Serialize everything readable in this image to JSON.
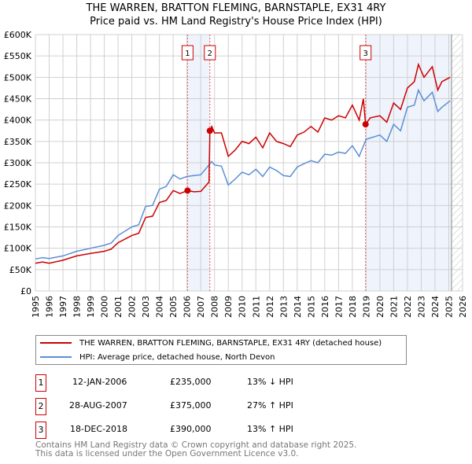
{
  "chart_data": {
    "type": "line",
    "title": "THE WARREN, BRATTON FLEMING, BARNSTAPLE, EX31 4RY",
    "subtitle": "Price paid vs. HM Land Registry's House Price Index (HPI)",
    "xlim": [
      1995,
      2026
    ],
    "ylim": [
      0,
      600000
    ],
    "x_ticks": [
      "1995",
      "1996",
      "1997",
      "1998",
      "1999",
      "2000",
      "2001",
      "2002",
      "2003",
      "2004",
      "2005",
      "2006",
      "2007",
      "2008",
      "2009",
      "2010",
      "2011",
      "2012",
      "2013",
      "2014",
      "2015",
      "2016",
      "2017",
      "2018",
      "2019",
      "2020",
      "2021",
      "2022",
      "2023",
      "2024",
      "2025",
      "2026"
    ],
    "y_ticks": [
      "£0",
      "£50K",
      "£100K",
      "£150K",
      "£200K",
      "£250K",
      "£300K",
      "£350K",
      "£400K",
      "£450K",
      "£500K",
      "£550K",
      "£600K"
    ],
    "grid": true,
    "series": [
      {
        "name": "THE WARREN, BRATTON FLEMING, BARNSTAPLE, EX31 4RY (detached house)",
        "color": "#cc0000",
        "x": [
          1995,
          1995.5,
          1996,
          1997,
          1998,
          1999,
          2000,
          2000.5,
          2001,
          2002,
          2002.5,
          2003,
          2003.5,
          2004,
          2004.5,
          2005,
          2005.5,
          2006.04,
          2006.5,
          2007,
          2007.6,
          2007.66,
          2007.8,
          2008,
          2008.5,
          2009,
          2009.5,
          2010,
          2010.5,
          2011,
          2011.5,
          2012,
          2012.5,
          2013,
          2013.5,
          2014,
          2014.5,
          2015,
          2015.5,
          2016,
          2016.5,
          2017,
          2017.5,
          2018,
          2018.5,
          2018.8,
          2018.96,
          2019.3,
          2020,
          2020.5,
          2021,
          2021.5,
          2022,
          2022.5,
          2022.8,
          2023.2,
          2023.8,
          2024.2,
          2024.5,
          2025.1
        ],
        "y": [
          65000,
          68000,
          65000,
          72000,
          82000,
          88000,
          93000,
          98000,
          113000,
          130000,
          135000,
          172000,
          175000,
          207000,
          212000,
          235000,
          228000,
          235000,
          232000,
          233000,
          255000,
          375000,
          385000,
          370000,
          370000,
          315000,
          330000,
          350000,
          345000,
          360000,
          335000,
          370000,
          350000,
          345000,
          338000,
          365000,
          372000,
          385000,
          372000,
          405000,
          400000,
          410000,
          405000,
          435000,
          400000,
          450000,
          390000,
          405000,
          410000,
          395000,
          440000,
          425000,
          475000,
          490000,
          530000,
          500000,
          525000,
          470000,
          490000,
          500000
        ]
      },
      {
        "name": "HPI: Average price, detached house, North Devon",
        "color": "#5b8fd6",
        "x": [
          1995,
          1995.5,
          1996,
          1997,
          1998,
          1999,
          2000,
          2000.5,
          2001,
          2002,
          2002.5,
          2003,
          2003.5,
          2004,
          2004.5,
          2005,
          2005.5,
          2006,
          2006.5,
          2007,
          2007.6,
          2007.8,
          2008,
          2008.5,
          2009,
          2009.5,
          2010,
          2010.5,
          2011,
          2011.5,
          2012,
          2012.5,
          2013,
          2013.5,
          2014,
          2014.5,
          2015,
          2015.5,
          2016,
          2016.5,
          2017,
          2017.5,
          2018,
          2018.5,
          2019,
          2020,
          2020.5,
          2021,
          2021.5,
          2022,
          2022.5,
          2022.8,
          2023.2,
          2023.8,
          2024.2,
          2024.5,
          2025.1
        ],
        "y": [
          75000,
          78000,
          76000,
          82000,
          93000,
          100000,
          107000,
          112000,
          130000,
          150000,
          155000,
          198000,
          200000,
          238000,
          245000,
          272000,
          262000,
          268000,
          270000,
          272000,
          295000,
          303000,
          295000,
          292000,
          248000,
          262000,
          278000,
          272000,
          285000,
          268000,
          290000,
          282000,
          270000,
          268000,
          290000,
          298000,
          305000,
          300000,
          320000,
          318000,
          325000,
          322000,
          340000,
          315000,
          355000,
          365000,
          350000,
          390000,
          375000,
          430000,
          435000,
          470000,
          445000,
          465000,
          420000,
          430000,
          445000
        ]
      }
    ],
    "transactions": [
      {
        "id": "1",
        "x": 2006.04,
        "y": 235000
      },
      {
        "id": "2",
        "x": 2007.66,
        "y": 375000
      },
      {
        "id": "3",
        "x": 2018.96,
        "y": 390000
      }
    ],
    "shaded_ranges": [
      [
        2006.04,
        2007.66
      ],
      [
        2018.96,
        2025.2
      ]
    ],
    "forecast_hatch_from": 2025.2
  },
  "header": {
    "title": "THE WARREN, BRATTON FLEMING, BARNSTAPLE, EX31 4RY",
    "subtitle": "Price paid vs. HM Land Registry's House Price Index (HPI)"
  },
  "legend": {
    "items": [
      {
        "label": "THE WARREN, BRATTON FLEMING, BARNSTAPLE, EX31 4RY (detached house)",
        "color": "#cc0000"
      },
      {
        "label": "HPI: Average price, detached house, North Devon",
        "color": "#5b8fd6"
      }
    ]
  },
  "table": [
    {
      "num": "1",
      "date": "12-JAN-2006",
      "price": "£235,000",
      "hpi": "13% ↓ HPI"
    },
    {
      "num": "2",
      "date": "28-AUG-2007",
      "price": "£375,000",
      "hpi": "27% ↑ HPI"
    },
    {
      "num": "3",
      "date": "18-DEC-2018",
      "price": "£390,000",
      "hpi": "13% ↑ HPI"
    }
  ],
  "footer": {
    "line1": "Contains HM Land Registry data © Crown copyright and database right 2025.",
    "line2": "This data is licensed under the Open Government Licence v3.0."
  }
}
